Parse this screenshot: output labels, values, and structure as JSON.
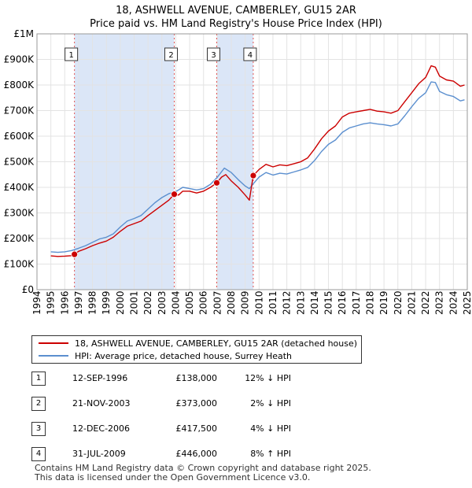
{
  "chart_data": {
    "type": "line",
    "title": "18, ASHWELL AVENUE, CAMBERLEY, GU15 2AR",
    "subtitle": "Price paid vs. HM Land Registry's House Price Index (HPI)",
    "xlim": [
      1994,
      2025
    ],
    "ylim": [
      0,
      1000000
    ],
    "x_ticks": [
      "1994",
      "1995",
      "1996",
      "1997",
      "1998",
      "1999",
      "2000",
      "2001",
      "2002",
      "2003",
      "2004",
      "2005",
      "2006",
      "2007",
      "2008",
      "2009",
      "2010",
      "2011",
      "2012",
      "2013",
      "2014",
      "2015",
      "2016",
      "2017",
      "2018",
      "2019",
      "2020",
      "2021",
      "2022",
      "2023",
      "2024",
      "2025"
    ],
    "y_ticks": [
      {
        "value": 0,
        "label": "£0"
      },
      {
        "value": 100000,
        "label": "£100K"
      },
      {
        "value": 200000,
        "label": "£200K"
      },
      {
        "value": 300000,
        "label": "£300K"
      },
      {
        "value": 400000,
        "label": "£400K"
      },
      {
        "value": 500000,
        "label": "£500K"
      },
      {
        "value": 600000,
        "label": "£600K"
      },
      {
        "value": 700000,
        "label": "£700K"
      },
      {
        "value": 800000,
        "label": "£800K"
      },
      {
        "value": 900000,
        "label": "£900K"
      },
      {
        "value": 1000000,
        "label": "£1M"
      }
    ],
    "series": [
      {
        "name": "18, ASHWELL AVENUE, CAMBERLEY, GU15 2AR (detached house)",
        "color": "#cc0000",
        "points": [
          [
            1995.0,
            132000
          ],
          [
            1995.5,
            130000
          ],
          [
            1996.0,
            131000
          ],
          [
            1996.5,
            133000
          ],
          [
            1996.7,
            138000
          ],
          [
            1997.0,
            150000
          ],
          [
            1997.5,
            160000
          ],
          [
            1998.0,
            172000
          ],
          [
            1998.5,
            182000
          ],
          [
            1999.0,
            190000
          ],
          [
            1999.5,
            205000
          ],
          [
            2000.0,
            228000
          ],
          [
            2000.5,
            248000
          ],
          [
            2001.0,
            258000
          ],
          [
            2001.5,
            268000
          ],
          [
            2002.0,
            290000
          ],
          [
            2002.5,
            310000
          ],
          [
            2003.0,
            330000
          ],
          [
            2003.5,
            350000
          ],
          [
            2003.89,
            373000
          ],
          [
            2004.2,
            370000
          ],
          [
            2004.5,
            385000
          ],
          [
            2005.0,
            385000
          ],
          [
            2005.5,
            378000
          ],
          [
            2006.0,
            385000
          ],
          [
            2006.5,
            400000
          ],
          [
            2006.95,
            417500
          ],
          [
            2007.3,
            440000
          ],
          [
            2007.6,
            450000
          ],
          [
            2008.0,
            425000
          ],
          [
            2008.5,
            400000
          ],
          [
            2009.0,
            370000
          ],
          [
            2009.3,
            350000
          ],
          [
            2009.58,
            446000
          ],
          [
            2010.0,
            470000
          ],
          [
            2010.5,
            490000
          ],
          [
            2011.0,
            480000
          ],
          [
            2011.5,
            488000
          ],
          [
            2012.0,
            485000
          ],
          [
            2012.5,
            492000
          ],
          [
            2013.0,
            500000
          ],
          [
            2013.5,
            515000
          ],
          [
            2014.0,
            550000
          ],
          [
            2014.5,
            590000
          ],
          [
            2015.0,
            620000
          ],
          [
            2015.5,
            640000
          ],
          [
            2016.0,
            675000
          ],
          [
            2016.5,
            690000
          ],
          [
            2017.0,
            695000
          ],
          [
            2017.5,
            700000
          ],
          [
            2018.0,
            705000
          ],
          [
            2018.5,
            698000
          ],
          [
            2019.0,
            695000
          ],
          [
            2019.5,
            690000
          ],
          [
            2020.0,
            700000
          ],
          [
            2020.5,
            735000
          ],
          [
            2021.0,
            770000
          ],
          [
            2021.5,
            805000
          ],
          [
            2022.0,
            830000
          ],
          [
            2022.4,
            875000
          ],
          [
            2022.7,
            870000
          ],
          [
            2023.0,
            835000
          ],
          [
            2023.5,
            820000
          ],
          [
            2024.0,
            815000
          ],
          [
            2024.5,
            795000
          ],
          [
            2024.8,
            800000
          ]
        ]
      },
      {
        "name": "HPI: Average price, detached house, Surrey Heath",
        "color": "#5b8fcf",
        "points": [
          [
            1995.0,
            148000
          ],
          [
            1995.5,
            146000
          ],
          [
            1996.0,
            148000
          ],
          [
            1996.5,
            153000
          ],
          [
            1997.0,
            162000
          ],
          [
            1997.5,
            172000
          ],
          [
            1998.0,
            185000
          ],
          [
            1998.5,
            198000
          ],
          [
            1999.0,
            205000
          ],
          [
            1999.5,
            218000
          ],
          [
            2000.0,
            245000
          ],
          [
            2000.5,
            268000
          ],
          [
            2001.0,
            278000
          ],
          [
            2001.5,
            290000
          ],
          [
            2002.0,
            315000
          ],
          [
            2002.5,
            340000
          ],
          [
            2003.0,
            360000
          ],
          [
            2003.5,
            375000
          ],
          [
            2004.0,
            383000
          ],
          [
            2004.5,
            400000
          ],
          [
            2005.0,
            395000
          ],
          [
            2005.5,
            390000
          ],
          [
            2006.0,
            395000
          ],
          [
            2006.5,
            412000
          ],
          [
            2007.0,
            440000
          ],
          [
            2007.5,
            475000
          ],
          [
            2008.0,
            458000
          ],
          [
            2008.5,
            430000
          ],
          [
            2009.0,
            405000
          ],
          [
            2009.3,
            395000
          ],
          [
            2009.6,
            415000
          ],
          [
            2010.0,
            440000
          ],
          [
            2010.5,
            458000
          ],
          [
            2011.0,
            448000
          ],
          [
            2011.5,
            455000
          ],
          [
            2012.0,
            452000
          ],
          [
            2012.5,
            460000
          ],
          [
            2013.0,
            468000
          ],
          [
            2013.5,
            478000
          ],
          [
            2014.0,
            505000
          ],
          [
            2014.5,
            540000
          ],
          [
            2015.0,
            568000
          ],
          [
            2015.5,
            585000
          ],
          [
            2016.0,
            615000
          ],
          [
            2016.5,
            632000
          ],
          [
            2017.0,
            640000
          ],
          [
            2017.5,
            648000
          ],
          [
            2018.0,
            652000
          ],
          [
            2018.5,
            648000
          ],
          [
            2019.0,
            645000
          ],
          [
            2019.5,
            640000
          ],
          [
            2020.0,
            648000
          ],
          [
            2020.5,
            680000
          ],
          [
            2021.0,
            715000
          ],
          [
            2021.5,
            748000
          ],
          [
            2022.0,
            770000
          ],
          [
            2022.4,
            812000
          ],
          [
            2022.7,
            810000
          ],
          [
            2023.0,
            775000
          ],
          [
            2023.5,
            762000
          ],
          [
            2024.0,
            755000
          ],
          [
            2024.5,
            738000
          ],
          [
            2024.8,
            742000
          ]
        ]
      }
    ],
    "sales": [
      {
        "id": "1",
        "x": 1996.7,
        "y": 138000
      },
      {
        "id": "2",
        "x": 2003.89,
        "y": 373000
      },
      {
        "id": "3",
        "x": 2006.95,
        "y": 417500
      },
      {
        "id": "4",
        "x": 2009.58,
        "y": 446000
      }
    ],
    "shaded_ranges": [
      [
        1996.7,
        2003.89
      ],
      [
        2006.95,
        2009.58
      ]
    ]
  },
  "legend": {
    "property": "18, ASHWELL AVENUE, CAMBERLEY, GU15 2AR (detached house)",
    "hpi": "HPI: Average price, detached house, Surrey Heath"
  },
  "transactions": [
    {
      "num": "1",
      "date": "12-SEP-1996",
      "price": "£138,000",
      "hpi": "12% ↓ HPI"
    },
    {
      "num": "2",
      "date": "21-NOV-2003",
      "price": "£373,000",
      "hpi": "2% ↓ HPI"
    },
    {
      "num": "3",
      "date": "12-DEC-2006",
      "price": "£417,500",
      "hpi": "4% ↓ HPI"
    },
    {
      "num": "4",
      "date": "31-JUL-2009",
      "price": "£446,000",
      "hpi": "8% ↑ HPI"
    }
  ],
  "footer": {
    "line1": "Contains HM Land Registry data © Crown copyright and database right 2025.",
    "line2": "This data is licensed under the Open Government Licence v3.0."
  },
  "colors": {
    "property": "#cc0000",
    "hpi": "#5b8fcf",
    "shade": "#dbe6f7",
    "grid": "#e3e3e3",
    "sale_line": "#e05555"
  }
}
